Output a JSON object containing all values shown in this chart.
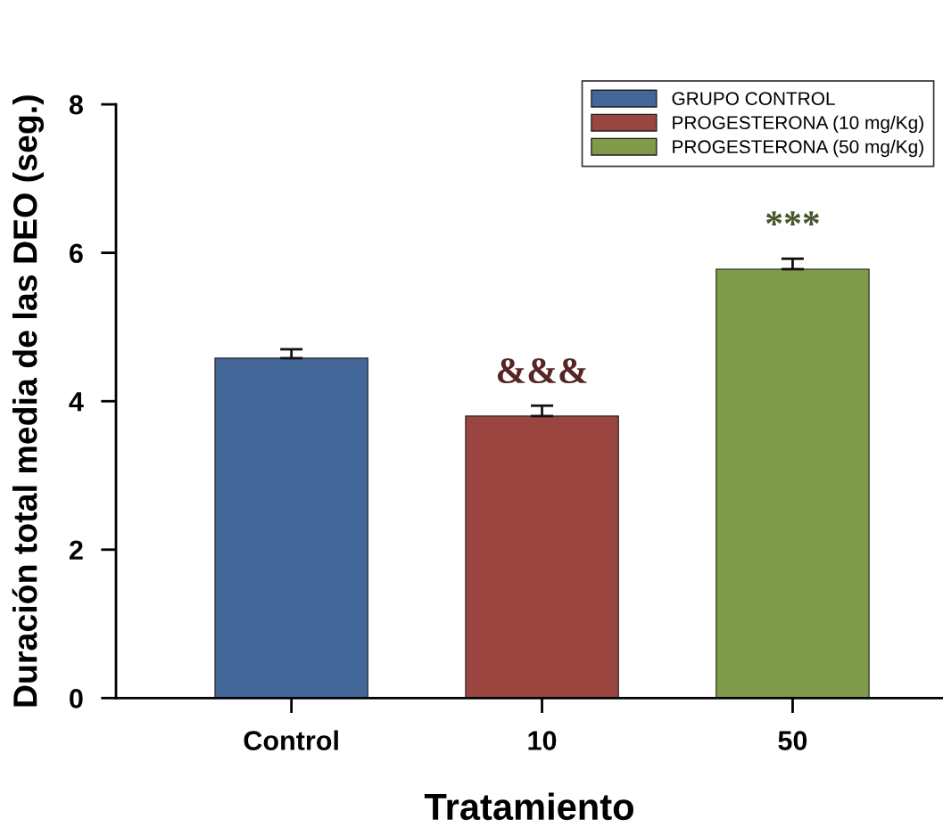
{
  "chart_data": {
    "type": "bar",
    "xlabel": "Tratamiento",
    "ylabel": "Duración total media de las DEO (seg.)",
    "categories": [
      "Control",
      "10",
      "50"
    ],
    "series": [
      {
        "name": "GRUPO CONTROL",
        "color": "#44679a",
        "values": [
          4.58,
          null,
          null
        ],
        "errors": [
          0.12,
          null,
          null
        ]
      },
      {
        "name": "PROGESTERONA (10 mg/Kg)",
        "color": "#9a4540",
        "values": [
          null,
          3.8,
          null
        ],
        "errors": [
          null,
          0.14,
          null
        ]
      },
      {
        "name": "PROGESTERONA (50 mg/Kg)",
        "color": "#7f9b4a",
        "values": [
          null,
          null,
          5.78
        ],
        "errors": [
          null,
          null,
          0.14
        ]
      }
    ],
    "ylim": [
      0,
      8
    ],
    "yticks": [
      0,
      2,
      4,
      6,
      8
    ],
    "grid": false,
    "legend": "top right",
    "annotations": [
      {
        "text": "&&&",
        "x": "10",
        "y": 3.94
      },
      {
        "text": "***",
        "x": "50",
        "y": 5.92
      }
    ]
  }
}
